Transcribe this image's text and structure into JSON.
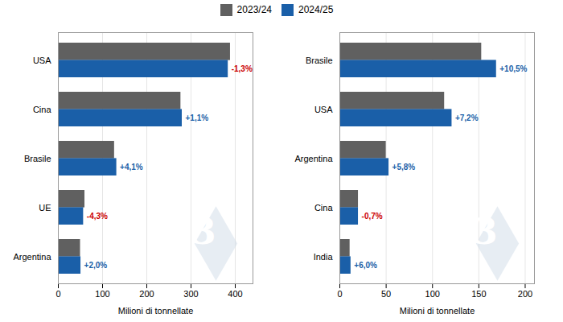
{
  "chart_data": [
    {
      "type": "bar",
      "orientation": "horizontal",
      "categories": [
        "USA",
        "Cina",
        "Brasile",
        "UE",
        "Argentina"
      ],
      "series": [
        {
          "name": "2023/24",
          "color": "#606060",
          "values": [
            389,
            277,
            127,
            60,
            50
          ]
        },
        {
          "name": "2024/25",
          "color": "#1a5fa8",
          "values": [
            384,
            280,
            132,
            57,
            51
          ]
        }
      ],
      "xlabel": "Milioni di tonnellate",
      "xlim": [
        0,
        440
      ],
      "xticks": [
        0,
        100,
        200,
        300,
        400
      ],
      "grid": true,
      "legend": "top",
      "annotations": [
        {
          "text": "-1,3%",
          "category": "USA",
          "series": "2024/25",
          "color": "#cc0000"
        },
        {
          "text": "+1,1%",
          "category": "Cina",
          "series": "2024/25",
          "color": "#1a5fa8"
        },
        {
          "text": "+4,1%",
          "category": "Brasile",
          "series": "2024/25",
          "color": "#1a5fa8"
        },
        {
          "text": "-4,3%",
          "category": "UE",
          "series": "2024/25",
          "color": "#cc0000"
        },
        {
          "text": "+2,0%",
          "category": "Argentina",
          "series": "2024/25",
          "color": "#1a5fa8"
        },
        {
          "text": "3",
          "color": "#cfdce8"
        }
      ]
    },
    {
      "type": "bar",
      "orientation": "horizontal",
      "categories": [
        "Brasile",
        "USA",
        "Argentina",
        "Cina",
        "India"
      ],
      "series": [
        {
          "name": "2023/24",
          "color": "#606060",
          "values": [
            153,
            113,
            50,
            20,
            11
          ]
        },
        {
          "name": "2024/25",
          "color": "#1a5fa8",
          "values": [
            169,
            121,
            53,
            20,
            12
          ]
        }
      ],
      "xlabel": "Milioni di tonnellate",
      "xlim": [
        0,
        210
      ],
      "xticks": [
        0,
        50,
        100,
        150,
        200
      ],
      "grid": true,
      "legend": "top",
      "annotations": [
        {
          "text": "+10,5%",
          "category": "Brasile",
          "series": "2024/25",
          "color": "#1a5fa8"
        },
        {
          "text": "+7,2%",
          "category": "USA",
          "series": "2024/25",
          "color": "#1a5fa8"
        },
        {
          "text": "+5,8%",
          "category": "Argentina",
          "series": "2024/25",
          "color": "#1a5fa8"
        },
        {
          "text": "-0,7%",
          "category": "Cina",
          "series": "2024/25",
          "color": "#cc0000"
        },
        {
          "text": "+6,0%",
          "category": "India",
          "series": "2024/25",
          "color": "#1a5fa8"
        },
        {
          "text": "3",
          "color": "#cfdce8"
        }
      ]
    }
  ]
}
